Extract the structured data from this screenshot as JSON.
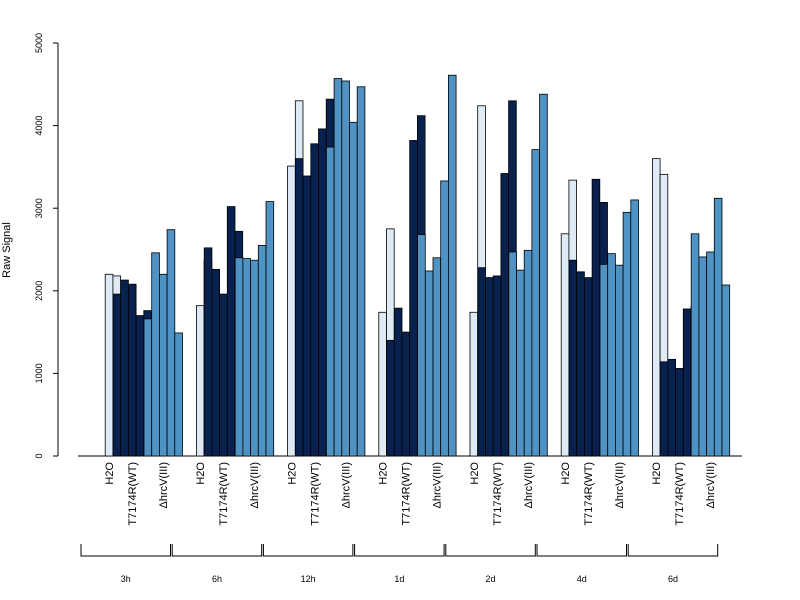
{
  "chart_data": {
    "type": "bar",
    "ylabel": "Raw Signal",
    "ylim": [
      0,
      5000
    ],
    "yticks": [
      0,
      1000,
      2000,
      3000,
      4000,
      5000
    ],
    "colors": {
      "H2O": "#deebf7",
      "T7174R(WT)": "#08214e",
      "hrcV": "#4f93c4"
    },
    "groups": [
      "H2O",
      "T7174R(WT)",
      "ΔhrcV(III)"
    ],
    "timepoints": [
      "3h",
      "6h",
      "12h",
      "1d",
      "2d",
      "4d",
      "6d"
    ],
    "values": [
      [
        [
          0,
          2200,
          2180
        ],
        [
          1960,
          2130,
          2080,
          1700,
          1760
        ],
        [
          1660,
          2460,
          2200,
          2740,
          1490
        ]
      ],
      [
        [
          0,
          1820,
          2370
        ],
        [
          2520,
          2260,
          1960,
          3020,
          2720
        ],
        [
          2400,
          2390,
          2370,
          2550,
          3080
        ]
      ],
      [
        [
          0,
          3510,
          4300
        ],
        [
          3600,
          3390,
          3780,
          3960,
          4320
        ],
        [
          3740,
          4570,
          4540,
          4040,
          4470
        ]
      ],
      [
        [
          0,
          1740,
          2750
        ],
        [
          1400,
          1790,
          1500,
          3820,
          4120
        ],
        [
          2680,
          2240,
          2400,
          3330,
          4610
        ]
      ],
      [
        [
          0,
          1740,
          4240
        ],
        [
          2280,
          2160,
          2180,
          3420,
          4300
        ],
        [
          2470,
          2250,
          2490,
          3710,
          4380
        ]
      ],
      [
        [
          0,
          2690,
          3340
        ],
        [
          2370,
          2230,
          2160,
          3350,
          3070
        ],
        [
          2320,
          2450,
          2310,
          2950,
          3100
        ]
      ],
      [
        [
          0,
          3600,
          3410
        ],
        [
          1140,
          1170,
          1060,
          1780,
          1810
        ],
        [
          2690,
          2410,
          2470,
          3120,
          2070
        ]
      ]
    ]
  }
}
